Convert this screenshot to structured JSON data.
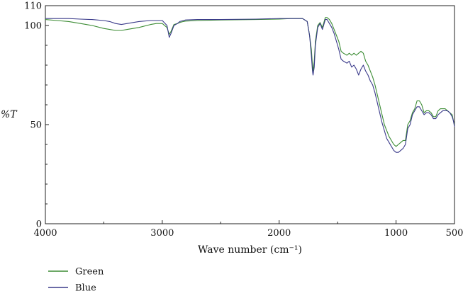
{
  "chart_data": {
    "type": "line",
    "title": "",
    "xlabel": "Wave number (cm⁻¹)",
    "ylabel": "%T",
    "xlim": [
      4000,
      500
    ],
    "ylim": [
      0,
      110
    ],
    "x_reversed": true,
    "x_ticks": [
      4000,
      3000,
      2000,
      1000,
      500
    ],
    "y_ticks": [
      0,
      50,
      100,
      110
    ],
    "grid": false,
    "legend_position": "bottom-left",
    "series": [
      {
        "name": "Green",
        "color": "#3c8c34",
        "x": [
          4000,
          3900,
          3800,
          3700,
          3600,
          3500,
          3450,
          3400,
          3350,
          3300,
          3200,
          3100,
          3050,
          3000,
          2960,
          2940,
          2925,
          2900,
          2870,
          2850,
          2820,
          2800,
          2700,
          2500,
          2200,
          2000,
          1900,
          1800,
          1760,
          1740,
          1725,
          1715,
          1710,
          1700,
          1690,
          1670,
          1650,
          1630,
          1620,
          1605,
          1590,
          1570,
          1550,
          1530,
          1510,
          1490,
          1470,
          1450,
          1420,
          1400,
          1380,
          1360,
          1340,
          1320,
          1300,
          1280,
          1260,
          1240,
          1220,
          1200,
          1180,
          1160,
          1140,
          1120,
          1100,
          1080,
          1060,
          1040,
          1020,
          1000,
          980,
          960,
          940,
          920,
          900,
          880,
          860,
          840,
          820,
          800,
          780,
          760,
          740,
          720,
          700,
          680,
          660,
          640,
          620,
          600,
          580,
          560,
          540,
          520,
          510,
          500
        ],
        "y": [
          103,
          102.5,
          102,
          101,
          100,
          98.5,
          98,
          97.5,
          97.5,
          98,
          99,
          100.5,
          101,
          101,
          99,
          95.5,
          97,
          100.5,
          101,
          101.5,
          102,
          102.2,
          102.5,
          102.8,
          103,
          103.2,
          103.5,
          103.5,
          102,
          95,
          88,
          80,
          77,
          82,
          92,
          100,
          101.5,
          99,
          101,
          104,
          104,
          103,
          101,
          98,
          95,
          92,
          87,
          86,
          85,
          86,
          85,
          86,
          85,
          86,
          87,
          86,
          82,
          80,
          77,
          74,
          70,
          65,
          60,
          55,
          50,
          47,
          44,
          42,
          40,
          39,
          40,
          41,
          42,
          42,
          50,
          52,
          56,
          58,
          62,
          62,
          60,
          56,
          57,
          57,
          56,
          54,
          54,
          57,
          58,
          58,
          58,
          57,
          56,
          55,
          52,
          50
        ]
      },
      {
        "name": "Blue",
        "color": "#3a3a8a",
        "x": [
          4000,
          3900,
          3800,
          3700,
          3600,
          3500,
          3450,
          3400,
          3350,
          3300,
          3200,
          3100,
          3050,
          3000,
          2960,
          2940,
          2925,
          2900,
          2870,
          2850,
          2820,
          2800,
          2700,
          2500,
          2200,
          2000,
          1900,
          1800,
          1760,
          1740,
          1725,
          1715,
          1710,
          1700,
          1690,
          1670,
          1650,
          1630,
          1620,
          1605,
          1590,
          1570,
          1550,
          1530,
          1510,
          1490,
          1470,
          1450,
          1420,
          1400,
          1380,
          1360,
          1340,
          1320,
          1300,
          1280,
          1260,
          1240,
          1220,
          1200,
          1180,
          1160,
          1140,
          1120,
          1100,
          1080,
          1060,
          1040,
          1020,
          1000,
          980,
          960,
          940,
          920,
          900,
          880,
          860,
          840,
          820,
          800,
          780,
          760,
          740,
          720,
          700,
          680,
          660,
          640,
          620,
          600,
          580,
          560,
          540,
          520,
          510,
          500
        ],
        "y": [
          103.5,
          103.5,
          103.5,
          103.2,
          103,
          102.5,
          102,
          101,
          100.5,
          101,
          102,
          102.5,
          102.5,
          102.5,
          100,
          94,
          96,
          100,
          101,
          102,
          102.5,
          102.8,
          103,
          103,
          103.2,
          103.5,
          103.5,
          103.5,
          102,
          95,
          85,
          77,
          75,
          79,
          90,
          99,
          101,
          98,
          100,
          103,
          103,
          101,
          99,
          96,
          92,
          88,
          83,
          82,
          81,
          82,
          79,
          80,
          78,
          75,
          78,
          80,
          77,
          75,
          72,
          70,
          66,
          61,
          56,
          51,
          47,
          43,
          41,
          39,
          37,
          36,
          36,
          37,
          38,
          40,
          48,
          50,
          55,
          57,
          59,
          59,
          57,
          55,
          56,
          56,
          55,
          53,
          53,
          55,
          56,
          57,
          57,
          57,
          56,
          54,
          52,
          49
        ]
      }
    ]
  }
}
